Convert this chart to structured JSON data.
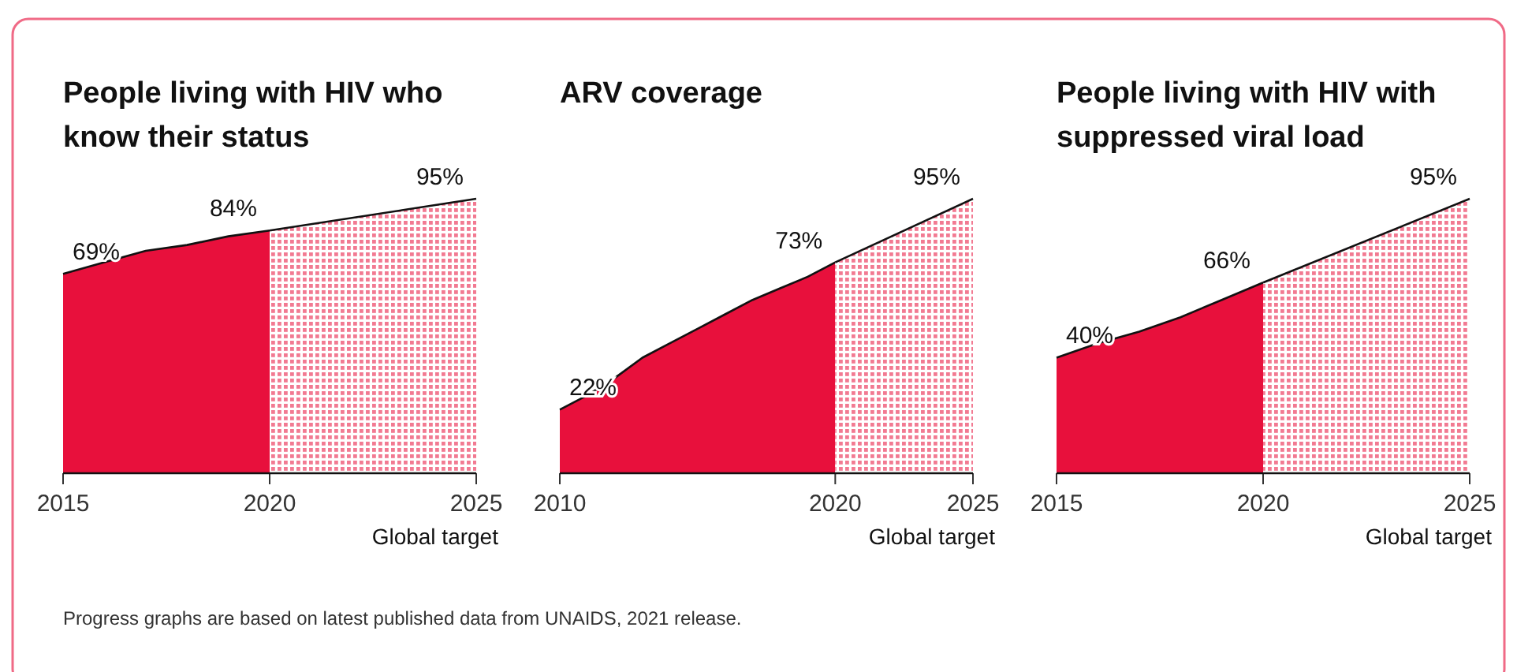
{
  "chart_data": [
    {
      "type": "area",
      "title": "People living with HIV who know their status",
      "xlabel": "Global target",
      "xlim": [
        2015,
        2025
      ],
      "xticks": [
        2015,
        2020,
        2025
      ],
      "tick_labels": "x",
      "series": [
        {
          "x": [
            2015,
            2016,
            2017,
            2018,
            2019,
            2020
          ],
          "values": [
            69,
            73,
            77,
            79,
            82,
            84
          ],
          "color": "#e8103c",
          "value_labels": [
            "69%",
            null,
            null,
            null,
            null,
            "84%"
          ]
        },
        {
          "x": [
            2020,
            2025
          ],
          "values": [
            84,
            95
          ],
          "color": "#f27a92",
          "value_labels": [
            null,
            "95%"
          ]
        }
      ]
    },
    {
      "type": "area",
      "title": "ARV coverage",
      "xlabel": "Global target",
      "xlim": [
        2010,
        2025
      ],
      "xticks": [
        2010,
        2020,
        2025
      ],
      "tick_labels": "x",
      "series": [
        {
          "x": [
            2010,
            2011,
            2012,
            2013,
            2014,
            2015,
            2016,
            2017,
            2018,
            2019,
            2020
          ],
          "values": [
            22,
            27,
            33,
            40,
            45,
            50,
            55,
            60,
            64,
            68,
            73
          ],
          "color": "#e8103c",
          "value_labels": [
            "22%",
            null,
            null,
            null,
            null,
            null,
            null,
            null,
            null,
            null,
            "73%"
          ]
        },
        {
          "x": [
            2020,
            2025
          ],
          "values": [
            73,
            95
          ],
          "color": "#f27a92",
          "value_labels": [
            null,
            "95%"
          ]
        }
      ]
    },
    {
      "type": "area",
      "title": "People living with HIV with suppressed viral load",
      "xlabel": "Global target",
      "xlim": [
        2015,
        2025
      ],
      "xticks": [
        2015,
        2020,
        2025
      ],
      "tick_labels": "x",
      "annotations": [
        "Progress graphs are based on latest published data from UNAIDS, 2021 release."
      ],
      "series": [
        {
          "x": [
            2015,
            2016,
            2017,
            2018,
            2019,
            2020
          ],
          "values": [
            40,
            45,
            49,
            54,
            60,
            66
          ],
          "color": "#e8103c",
          "value_labels": [
            "40%",
            null,
            null,
            null,
            null,
            "66%"
          ]
        },
        {
          "x": [
            2020,
            2025
          ],
          "values": [
            66,
            95
          ],
          "color": "#f27a92",
          "value_labels": [
            null,
            "95%"
          ]
        }
      ]
    }
  ]
}
